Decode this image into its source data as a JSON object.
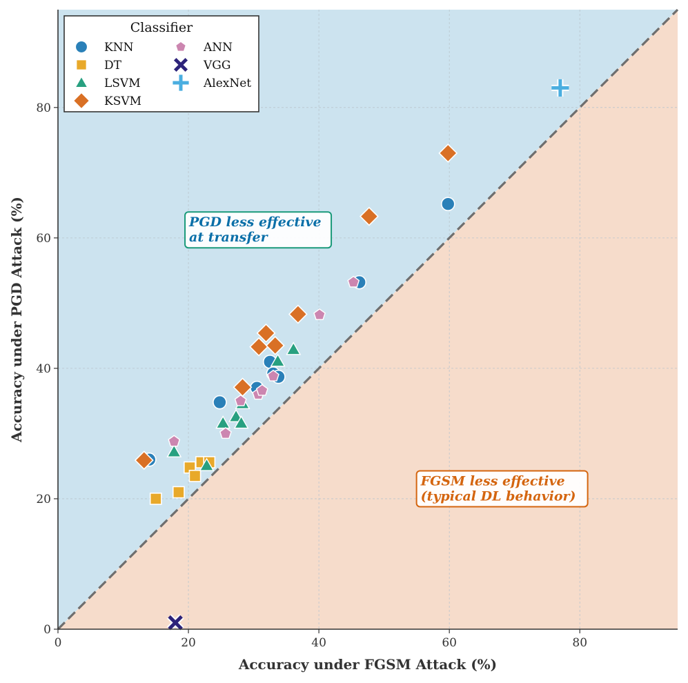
{
  "chart_data": {
    "type": "scatter",
    "xlabel": "Accuracy under FGSM Attack (%)",
    "ylabel": "Accuracy under PGD Attack (%)",
    "xlim": [
      0,
      95
    ],
    "ylim": [
      0,
      95
    ],
    "xticks": [
      "0",
      "20",
      "40",
      "60",
      "80"
    ],
    "yticks": [
      "0",
      "20",
      "40",
      "60",
      "80"
    ],
    "grid": true,
    "diagonal": "y = x dashed",
    "regions": [
      {
        "name": "above-diagonal",
        "color": "#cce3ef"
      },
      {
        "name": "below-diagonal",
        "color": "#f6dccb"
      }
    ],
    "legend": {
      "title": "Classifier",
      "position": "top-left"
    },
    "annotations": [
      {
        "id": "pgd",
        "lines": [
          "PGD less effective",
          "at transfer"
        ],
        "color": "#0a6fa8",
        "border": "#1a9a7a",
        "at": [
          20,
          62.5
        ]
      },
      {
        "id": "fgsm",
        "lines": [
          "FGSM less effective",
          "(typical DL behavior)"
        ],
        "color": "#d4650f",
        "border": "#d4650f",
        "at": [
          55.5,
          22.8
        ]
      }
    ],
    "series": [
      {
        "name": "KNN",
        "marker": "circle",
        "color": "#2a80b8",
        "points": [
          [
            14,
            26
          ],
          [
            24.8,
            34.8
          ],
          [
            30.5,
            37
          ],
          [
            32.5,
            41
          ],
          [
            33,
            39.2
          ],
          [
            33.8,
            38.7
          ],
          [
            46.2,
            53.2
          ],
          [
            59.8,
            65.2
          ]
        ]
      },
      {
        "name": "DT",
        "marker": "square",
        "color": "#e8a92a",
        "points": [
          [
            15,
            20
          ],
          [
            18.5,
            21
          ],
          [
            20.2,
            24.8
          ],
          [
            21,
            23.5
          ],
          [
            22,
            25.6
          ],
          [
            23.2,
            25.6
          ]
        ]
      },
      {
        "name": "LSVM",
        "marker": "triangle",
        "color": "#28a080",
        "points": [
          [
            17.8,
            27.2
          ],
          [
            22.8,
            25.1
          ],
          [
            25.3,
            31.6
          ],
          [
            27.3,
            32.6
          ],
          [
            28.1,
            31.6
          ],
          [
            28.3,
            34.6
          ],
          [
            33.7,
            41.1
          ],
          [
            36.1,
            42.9
          ]
        ]
      },
      {
        "name": "KSVM",
        "marker": "diamond",
        "color": "#d97025",
        "points": [
          [
            13.2,
            25.9
          ],
          [
            28.3,
            37.1
          ],
          [
            30.8,
            43.3
          ],
          [
            31.9,
            45.4
          ],
          [
            33.3,
            43.5
          ],
          [
            36.8,
            48.3
          ],
          [
            47.7,
            63.3
          ],
          [
            59.8,
            73
          ]
        ]
      },
      {
        "name": "ANN",
        "marker": "pentagon",
        "color": "#cc86b0",
        "points": [
          [
            17.8,
            28.8
          ],
          [
            25.7,
            30
          ],
          [
            28,
            35
          ],
          [
            30.7,
            36
          ],
          [
            31.3,
            36.6
          ],
          [
            33,
            38.8
          ],
          [
            40.1,
            48.2
          ],
          [
            45.3,
            53.2
          ]
        ]
      },
      {
        "name": "VGG",
        "marker": "x",
        "color": "#2d237a",
        "points": [
          [
            18,
            1
          ]
        ]
      },
      {
        "name": "AlexNet",
        "marker": "plus",
        "color": "#4aaee0",
        "points": [
          [
            77,
            83
          ]
        ]
      }
    ]
  }
}
